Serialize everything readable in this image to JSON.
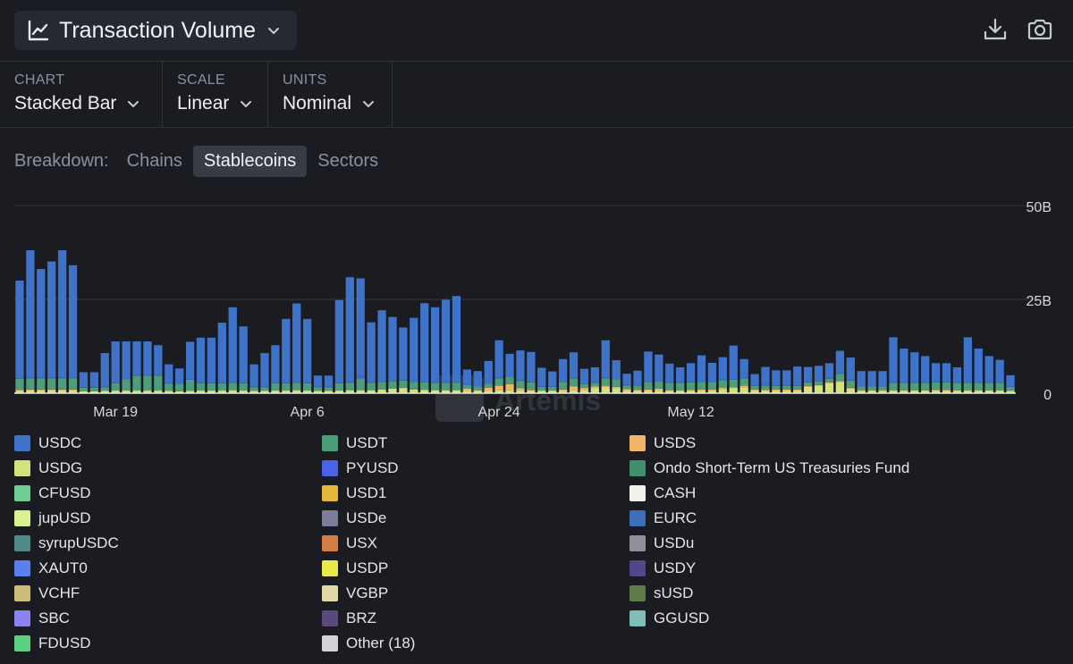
{
  "header": {
    "title": "Transaction Volume"
  },
  "controls": [
    {
      "label": "CHART",
      "value": "Stacked Bar"
    },
    {
      "label": "SCALE",
      "value": "Linear"
    },
    {
      "label": "UNITS",
      "value": "Nominal"
    }
  ],
  "breakdown": {
    "label": "Breakdown:",
    "tabs": [
      {
        "label": "Chains",
        "active": false
      },
      {
        "label": "Stablecoins",
        "active": true
      },
      {
        "label": "Sectors",
        "active": false
      }
    ]
  },
  "watermark": "Artemis",
  "chart_data": {
    "type": "bar",
    "stacked": true,
    "yticks": [
      "0",
      "25B",
      "50B"
    ],
    "ylim": [
      0,
      50
    ],
    "xticks": [
      {
        "label": "Mar 19",
        "index": 9
      },
      {
        "label": "Apr 6",
        "index": 27
      },
      {
        "label": "Apr 24",
        "index": 45
      },
      {
        "label": "May 12",
        "index": 63
      }
    ],
    "grid": true,
    "series": [
      {
        "name": "USDC",
        "color": "#3f73c9",
        "values": [
          26,
          34,
          29,
          31,
          34,
          30,
          4,
          4,
          9,
          11,
          10,
          9,
          9,
          8,
          5,
          4,
          10,
          12,
          12,
          16,
          20,
          15,
          6,
          9,
          10,
          17,
          21,
          17,
          3,
          3,
          22,
          28,
          26,
          16,
          19,
          17,
          14,
          17,
          21,
          20,
          22,
          23,
          4,
          4,
          6,
          10,
          6,
          8,
          8,
          5,
          4,
          6,
          7,
          4,
          4,
          10,
          5,
          3,
          4,
          8,
          7,
          5,
          4,
          5,
          7,
          5,
          6,
          9,
          5,
          3,
          5,
          4,
          4,
          5,
          4,
          4,
          4,
          6,
          6,
          4,
          4,
          4,
          12,
          9,
          8,
          7,
          5,
          5,
          4,
          12,
          9,
          7,
          6,
          3
        ]
      },
      {
        "name": "USDT",
        "color": "#4c9e7b",
        "values": [
          3,
          3,
          3,
          3,
          3,
          3,
          1,
          1,
          1,
          2,
          3,
          4,
          4,
          4,
          2,
          2,
          3,
          2,
          2,
          2,
          2,
          2,
          1,
          1,
          2,
          2,
          2,
          2,
          1,
          1,
          2,
          2,
          3,
          2,
          2,
          2,
          2,
          2,
          2,
          2,
          2,
          2,
          1,
          1,
          1,
          2,
          2,
          2,
          2,
          1,
          1,
          2,
          2,
          1,
          1,
          2,
          2,
          1,
          1,
          2,
          2,
          2,
          2,
          2,
          2,
          2,
          2,
          2,
          2,
          1,
          1,
          1,
          1,
          1,
          1,
          1,
          1,
          2,
          2,
          1,
          1,
          1,
          2,
          2,
          2,
          2,
          2,
          2,
          2,
          2,
          2,
          2,
          2,
          1
        ]
      },
      {
        "name": "USDS",
        "color": "#f0b565",
        "values": [
          0.2,
          0.2,
          0.2,
          0.2,
          0.2,
          0.2,
          0,
          0,
          0,
          0,
          0,
          0,
          0,
          0,
          0,
          0,
          0,
          0,
          0,
          0,
          0,
          0,
          0,
          0,
          0,
          0,
          0,
          0,
          0,
          0,
          0,
          0,
          0,
          0,
          0,
          0,
          0,
          0,
          0,
          0,
          0,
          0,
          0.6,
          0.2,
          0.8,
          1.2,
          1.6,
          0.5,
          0.2,
          0.1,
          0.1,
          0.3,
          1,
          0.6,
          0.4,
          0.3,
          0.3,
          0.4,
          0.3,
          0.3,
          0.5,
          0.2,
          0.2,
          0.3,
          0.3,
          0.3,
          0.5,
          0.2,
          0.4,
          0.2,
          0.2,
          0.3,
          0.3,
          0.2,
          0.2,
          0.2,
          0.2,
          0.2,
          0.2,
          0.2,
          0.2,
          0.2,
          0.2,
          0.2,
          0.2,
          0.2,
          0.2,
          0.2,
          0.2,
          0.2,
          0.2,
          0.2,
          0.2,
          0.2
        ]
      },
      {
        "name": "USDG",
        "color": "#d4e27e",
        "values": [
          0.5,
          0.6,
          0.6,
          0.6,
          0.6,
          0.6,
          0.3,
          0.3,
          0.4,
          0.5,
          0.5,
          0.5,
          0.5,
          0.5,
          0.4,
          0.3,
          0.4,
          0.5,
          0.5,
          0.5,
          0.6,
          0.5,
          0.4,
          0.4,
          0.5,
          0.5,
          0.6,
          0.5,
          0.4,
          0.4,
          0.5,
          0.6,
          0.6,
          0.6,
          0.8,
          1,
          1.2,
          0.8,
          0.7,
          0.6,
          0.6,
          0.6,
          0.4,
          0.4,
          0.5,
          0.6,
          0.6,
          0.6,
          0.5,
          0.4,
          0.4,
          0.5,
          0.6,
          0.6,
          1.2,
          1.5,
          1.2,
          0.5,
          0.4,
          0.5,
          0.5,
          0.4,
          0.4,
          0.4,
          0.5,
          0.5,
          0.8,
          1.2,
          1.4,
          0.6,
          0.5,
          0.5,
          0.5,
          0.6,
          1.5,
          1.8,
          2.5,
          2.8,
          1,
          0.4,
          0.4,
          0.4,
          0.4,
          0.4,
          0.4,
          0.4,
          0.5,
          0.5,
          0.4,
          0.4,
          0.4,
          0.4,
          0.4,
          0.3
        ]
      },
      {
        "name": "PYUSD",
        "color": "#4a62e6",
        "values": [
          0.1,
          0.1,
          0.1,
          0.1,
          0.1,
          0.1,
          0.1,
          0.1,
          0.1,
          0.1,
          0.1,
          0.1,
          0.1,
          0.1,
          0.1,
          0.1,
          0.1,
          0.1,
          0.1,
          0.1,
          0.1,
          0.1,
          0.1,
          0.1,
          0.1,
          0.1,
          0.1,
          0.1,
          0.1,
          0.1,
          0.1,
          0.1,
          0.8,
          0.1,
          0.1,
          0.1,
          0.1,
          0.1,
          0.1,
          0.1,
          0.1,
          0.1,
          0.1,
          0.1,
          0.1,
          0.1,
          0.1,
          0.1,
          0.1,
          0.1,
          0.1,
          0.1,
          0.1,
          0.1,
          0.1,
          0.1,
          0.1,
          0.1,
          0.1,
          0.1,
          0.1,
          0.1,
          0.1,
          0.1,
          0.1,
          0.1,
          0.1,
          0.1,
          0.1,
          0.1,
          0.1,
          0.1,
          0.1,
          0.1,
          0.1,
          0.1,
          0.1,
          0.1,
          0.1,
          0.1,
          0.1,
          0.1,
          0.1,
          0.1,
          0.1,
          0.1,
          0.1,
          0.1,
          0.1,
          0.1,
          0.1,
          0.1,
          0.1,
          0.1
        ]
      },
      {
        "name": "Ondo Short-Term US Treasuries Fund",
        "color": "#3f8f6e",
        "values": []
      },
      {
        "name": "CFUSD",
        "color": "#6fcf93",
        "values": []
      },
      {
        "name": "USD1",
        "color": "#e3b83c",
        "values": []
      },
      {
        "name": "CASH",
        "color": "#f1f1ea",
        "values": [
          0.2,
          0.2,
          0.2,
          0.2,
          0.2,
          0.2,
          0.2,
          0.2,
          0.2,
          0.2,
          0.2,
          0.2,
          0.2,
          0.2,
          0.2,
          0.2,
          0.2,
          0.2,
          0.2,
          0.2,
          0.2,
          0.2,
          0.2,
          0.2,
          0.2,
          0.2,
          0.2,
          0.2,
          0.2,
          0.2,
          0.2,
          0.2,
          0.2,
          0.2,
          0.2,
          0.2,
          0.2,
          0.2,
          0.2,
          0.2,
          0.2,
          0.2,
          0.2,
          0.2,
          0.2,
          0.2,
          0.2,
          0.2,
          0.2,
          0.2,
          0.2,
          0.2,
          0.2,
          0.2,
          0.2,
          0.2,
          0.2,
          0.2,
          0.2,
          0.2,
          0.2,
          0.2,
          0.2,
          0.2,
          0.2,
          0.2,
          0.2,
          0.2,
          0.2,
          0.2,
          0.2,
          0.2,
          0.2,
          0.2,
          0.2,
          0.2,
          0.2,
          0.2,
          0.2,
          0.2,
          0.2,
          0.2,
          0.2,
          0.2,
          0.2,
          0.2,
          0.2,
          0.2,
          0.2,
          0.2,
          0.2,
          0.2,
          0.2,
          0.2
        ]
      },
      {
        "name": "jupUSD",
        "color": "#d9f28f",
        "values": []
      },
      {
        "name": "USDe",
        "color": "#7a7d96",
        "values": []
      },
      {
        "name": "EURC",
        "color": "#3d6eb8",
        "values": []
      },
      {
        "name": "syrupUSDC",
        "color": "#4f8a88",
        "values": []
      },
      {
        "name": "USX",
        "color": "#d67f45",
        "values": []
      },
      {
        "name": "USDu",
        "color": "#8f9099",
        "values": []
      },
      {
        "name": "XAUT0",
        "color": "#5b7ff0",
        "values": []
      },
      {
        "name": "USDP",
        "color": "#eaea4d",
        "values": []
      },
      {
        "name": "USDY",
        "color": "#4f4787",
        "values": []
      },
      {
        "name": "VCHF",
        "color": "#cdbd79",
        "values": []
      },
      {
        "name": "VGBP",
        "color": "#e1d9a8",
        "values": []
      },
      {
        "name": "sUSD",
        "color": "#5f7a47",
        "values": []
      },
      {
        "name": "SBC",
        "color": "#8a83f0",
        "values": []
      },
      {
        "name": "BRZ",
        "color": "#5a4a79",
        "values": []
      },
      {
        "name": "GGUSD",
        "color": "#7fbdb8",
        "values": []
      },
      {
        "name": "FDUSD",
        "color": "#5ccf82",
        "values": []
      },
      {
        "name": "Other (18)",
        "color": "#d3d3d3",
        "values": []
      }
    ]
  }
}
